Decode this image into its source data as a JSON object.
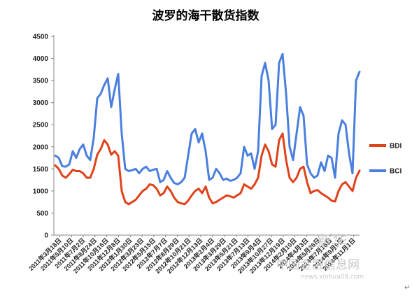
{
  "chart_data": {
    "type": "line",
    "title": "波罗的海干散货指数",
    "ylim": [
      0,
      4500
    ],
    "yticks": [
      0,
      500,
      1000,
      1500,
      2000,
      2500,
      3000,
      3500,
      4000,
      4500
    ],
    "grid": false,
    "legend_position": "right",
    "x_tick_labels": [
      "2011年3月18日",
      "2011年5月10日",
      "2011年7月2日",
      "2011年8月24日",
      "2011年10月16日",
      "2011年12月8日",
      "2012年1月30日",
      "2012年3月23日",
      "2012年5月15日",
      "2012年7月7日",
      "2012年8月29日",
      "2012年10月21日",
      "2012年12月13日",
      "2013年2月4日",
      "2013年3月29日",
      "2013年5月21日",
      "2013年7月13日",
      "2013年9月4日",
      "2013年10月27日",
      "2013年12月19日",
      "2014年2月10日",
      "2014年4月3日",
      "2014年5月26日",
      "2014年7月18日",
      "2014年9月9日",
      "2014年11月1日"
    ],
    "series": [
      {
        "name": "BDI",
        "color": "#e0421b",
        "values": [
          1580,
          1500,
          1350,
          1300,
          1380,
          1480,
          1450,
          1450,
          1400,
          1300,
          1300,
          1500,
          1820,
          1950,
          2150,
          2050,
          1820,
          1900,
          1800,
          1000,
          750,
          700,
          750,
          800,
          900,
          1000,
          1050,
          1150,
          1130,
          1050,
          900,
          950,
          1100,
          1000,
          850,
          750,
          720,
          700,
          780,
          900,
          1000,
          1050,
          950,
          1100,
          850,
          720,
          750,
          800,
          850,
          900,
          880,
          850,
          900,
          950,
          1150,
          1100,
          1050,
          1150,
          1300,
          1800,
          2050,
          1900,
          1600,
          1550,
          2150,
          2300,
          1700,
          1300,
          1200,
          1300,
          1500,
          1550,
          1200,
          950,
          1000,
          1020,
          950,
          900,
          850,
          780,
          760,
          1000,
          1150,
          1200,
          1100,
          1000,
          1300,
          1460
        ]
      },
      {
        "name": "BCI",
        "color": "#4a7fde",
        "values": [
          1800,
          1750,
          1560,
          1550,
          1600,
          1900,
          1750,
          1950,
          2050,
          1800,
          1700,
          2200,
          3100,
          3200,
          3400,
          3550,
          2900,
          3300,
          3650,
          2300,
          1500,
          1450,
          1470,
          1500,
          1400,
          1500,
          1550,
          1450,
          1480,
          1500,
          1200,
          1250,
          1450,
          1300,
          1180,
          1150,
          1200,
          1300,
          1800,
          2300,
          2400,
          2100,
          2300,
          1900,
          1250,
          1300,
          1500,
          1400,
          1250,
          1280,
          1230,
          1250,
          1300,
          1400,
          2000,
          1800,
          1850,
          1500,
          1900,
          3600,
          3900,
          3500,
          2400,
          2500,
          3900,
          4100,
          3200,
          2000,
          1700,
          2300,
          2900,
          2700,
          1600,
          1400,
          1300,
          1350,
          1650,
          1450,
          1800,
          1750,
          1300,
          2300,
          2600,
          2500,
          1850,
          1400,
          3500,
          3700
        ]
      }
    ]
  },
  "watermark": {
    "main": "中国金融信息网",
    "sub": "news.xinhua08.com",
    "stamp": "新华"
  },
  "corner_mark": "↵"
}
